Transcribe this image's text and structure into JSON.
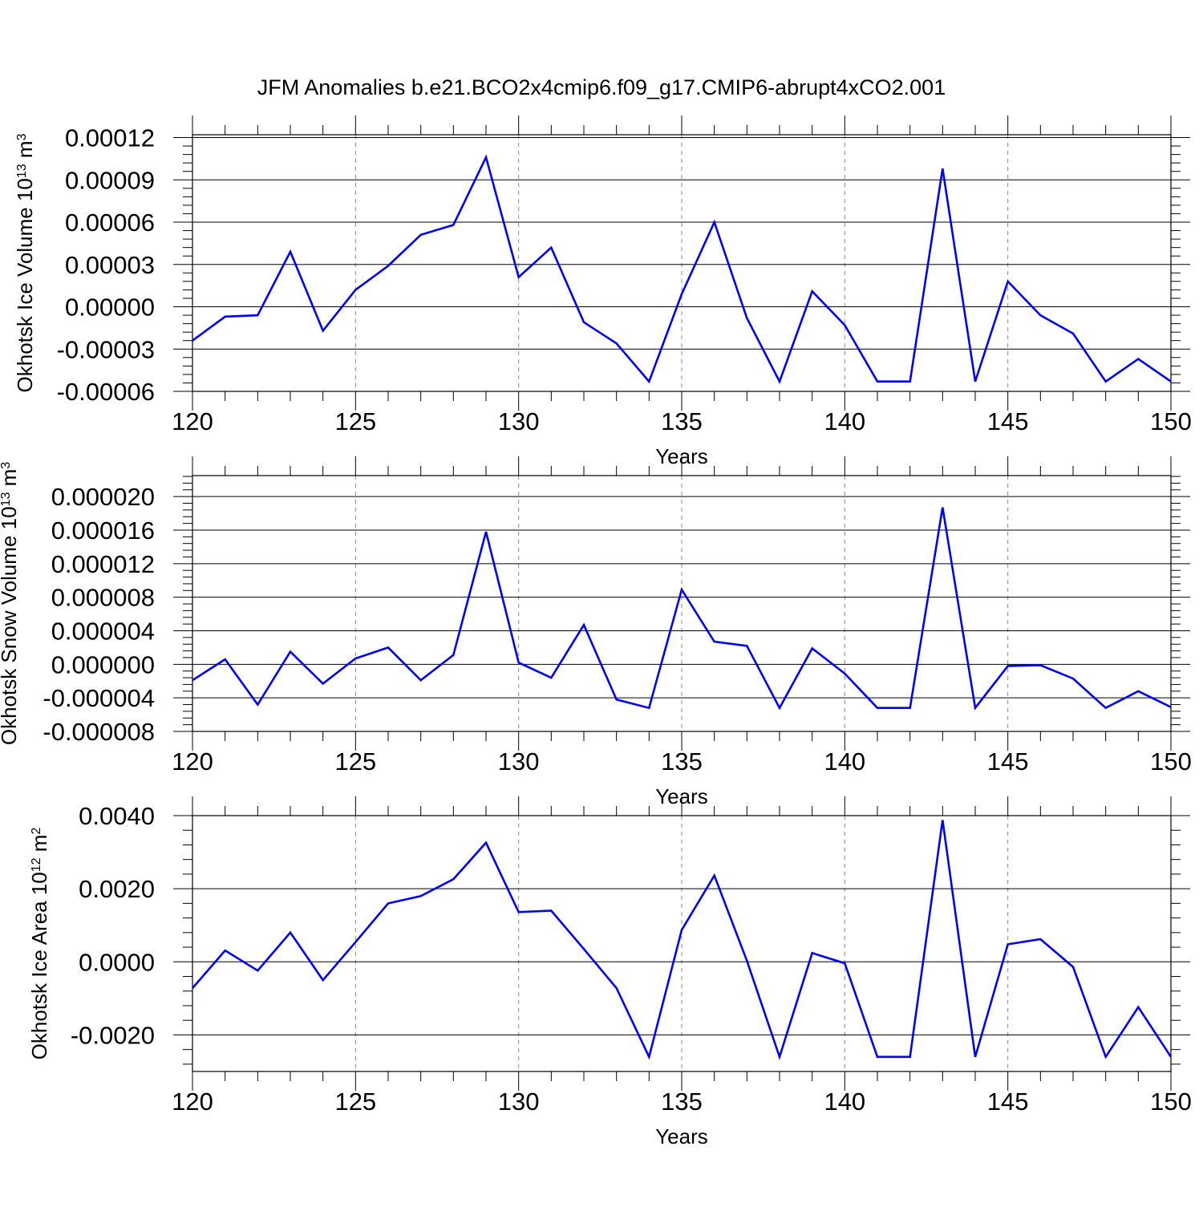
{
  "title": "JFM Anomalies b.e21.BCO2x4cmip6.f09_g17.CMIP6-abrupt4xCO2.001",
  "colors": {
    "line": "#0000ff",
    "axis": "#000000",
    "grid": "#888888"
  },
  "chart_data": [
    {
      "type": "line",
      "ylabel": "Okhotsk Ice Volume 10",
      "ylabel_exp": "13",
      "ylabel_unit": " m",
      "ylabel_unit_exp": "3",
      "xlabel": "Years",
      "xlim": [
        120,
        150
      ],
      "ylim": [
        -6e-05,
        0.000122
      ],
      "grid": "vertical dashed at major x ticks",
      "x_ticks": [
        {
          "value": 120,
          "label": "120"
        },
        {
          "value": 125,
          "label": "125"
        },
        {
          "value": 130,
          "label": "130"
        },
        {
          "value": 135,
          "label": "135"
        },
        {
          "value": 140,
          "label": "140"
        },
        {
          "value": 145,
          "label": "145"
        },
        {
          "value": 150,
          "label": "150"
        }
      ],
      "y_ticks": [
        {
          "value": 0.00012,
          "label": "0.00012"
        },
        {
          "value": 9e-05,
          "label": "0.00009"
        },
        {
          "value": 6e-05,
          "label": "0.00006"
        },
        {
          "value": 3e-05,
          "label": "0.00003"
        },
        {
          "value": 0.0,
          "label": "0.00000"
        },
        {
          "value": -3e-05,
          "label": "-0.00003"
        },
        {
          "value": -6e-05,
          "label": "-0.00006"
        }
      ],
      "series": [
        {
          "x": [
            120,
            121,
            122,
            123,
            124,
            125,
            126,
            127,
            128,
            129,
            130,
            131,
            132,
            133,
            134,
            135,
            136,
            137,
            138,
            139,
            140,
            141,
            142,
            143,
            144,
            145,
            146,
            147,
            148,
            149,
            150
          ],
          "values": [
            -2.4e-05,
            -7e-06,
            -6e-06,
            3.9e-05,
            -1.7e-05,
            1.2e-05,
            2.9e-05,
            5.1e-05,
            5.8e-05,
            0.000106,
            2.1e-05,
            4.2e-05,
            -1.1e-05,
            -2.6e-05,
            -5.3e-05,
            9e-06,
            6e-05,
            -8e-06,
            -5.3e-05,
            1.1e-05,
            -1.3e-05,
            -5.3e-05,
            -5.3e-05,
            9.8e-05,
            -5.3e-05,
            1.8e-05,
            -6e-06,
            -1.9e-05,
            -5.3e-05,
            -3.7e-05,
            -5.3e-05
          ]
        }
      ]
    },
    {
      "type": "line",
      "ylabel": "Okhotsk Snow Volume 10",
      "ylabel_exp": "13",
      "ylabel_unit": " m",
      "ylabel_unit_exp": "3",
      "xlabel": "Years",
      "xlim": [
        120,
        150
      ],
      "ylim": [
        -8e-06,
        2.25e-05
      ],
      "grid": "vertical dashed at major x ticks",
      "x_ticks": [
        {
          "value": 120,
          "label": "120"
        },
        {
          "value": 125,
          "label": "125"
        },
        {
          "value": 130,
          "label": "130"
        },
        {
          "value": 135,
          "label": "135"
        },
        {
          "value": 140,
          "label": "140"
        },
        {
          "value": 145,
          "label": "145"
        },
        {
          "value": 150,
          "label": "150"
        }
      ],
      "y_ticks": [
        {
          "value": 2e-05,
          "label": "0.000020"
        },
        {
          "value": 1.6e-05,
          "label": "0.000016"
        },
        {
          "value": 1.2e-05,
          "label": "0.000012"
        },
        {
          "value": 8e-06,
          "label": "0.000008"
        },
        {
          "value": 4e-06,
          "label": "0.000004"
        },
        {
          "value": 0.0,
          "label": "0.000000"
        },
        {
          "value": -4e-06,
          "label": "-0.000004"
        },
        {
          "value": -8e-06,
          "label": "-0.000008"
        }
      ],
      "series": [
        {
          "x": [
            120,
            121,
            122,
            123,
            124,
            125,
            126,
            127,
            128,
            129,
            130,
            131,
            132,
            133,
            134,
            135,
            136,
            137,
            138,
            139,
            140,
            141,
            142,
            143,
            144,
            145,
            146,
            147,
            148,
            149,
            150
          ],
          "values": [
            -1.9e-06,
            6e-07,
            -4.8e-06,
            1.5e-06,
            -2.3e-06,
            7e-07,
            2e-06,
            -1.9e-06,
            1.1e-06,
            1.58e-05,
            2e-07,
            -1.6e-06,
            4.7e-06,
            -4.2e-06,
            -5.2e-06,
            8.9e-06,
            2.7e-06,
            2.2e-06,
            -5.2e-06,
            1.9e-06,
            -1.1e-06,
            -5.2e-06,
            -5.2e-06,
            1.87e-05,
            -5.2e-06,
            -2e-07,
            -1e-07,
            -1.7e-06,
            -5.2e-06,
            -3.2e-06,
            -5.1e-06
          ]
        }
      ]
    },
    {
      "type": "line",
      "ylabel": "Okhotsk Ice Area 10",
      "ylabel_exp": "12",
      "ylabel_unit": " m",
      "ylabel_unit_exp": "2",
      "xlabel": "Years",
      "xlim": [
        120,
        150
      ],
      "ylim": [
        -0.003,
        0.004
      ],
      "grid": "vertical dashed at major x ticks",
      "x_ticks": [
        {
          "value": 120,
          "label": "120"
        },
        {
          "value": 125,
          "label": "125"
        },
        {
          "value": 130,
          "label": "130"
        },
        {
          "value": 135,
          "label": "135"
        },
        {
          "value": 140,
          "label": "140"
        },
        {
          "value": 145,
          "label": "145"
        },
        {
          "value": 150,
          "label": "150"
        }
      ],
      "y_ticks": [
        {
          "value": 0.004,
          "label": "0.0040"
        },
        {
          "value": 0.002,
          "label": "0.0020"
        },
        {
          "value": 0.0,
          "label": "0.0000"
        },
        {
          "value": -0.002,
          "label": "-0.0020"
        }
      ],
      "series": [
        {
          "x": [
            120,
            121,
            122,
            123,
            124,
            125,
            126,
            127,
            128,
            129,
            130,
            131,
            132,
            133,
            134,
            135,
            136,
            137,
            138,
            139,
            140,
            141,
            142,
            143,
            144,
            145,
            146,
            147,
            148,
            149,
            150
          ],
          "values": [
            -0.00072,
            0.00031,
            -0.00024,
            0.0008,
            -0.0005,
            0.00054,
            0.0016,
            0.0018,
            0.00226,
            0.00326,
            0.00136,
            0.0014,
            0.00035,
            -0.00072,
            -0.0026,
            0.00087,
            0.00236,
            3e-05,
            -0.0026,
            0.00024,
            -4e-05,
            -0.0026,
            -0.0026,
            0.00388,
            -0.0026,
            0.00048,
            0.00062,
            -0.00014,
            -0.0026,
            -0.00124,
            -0.0026
          ]
        }
      ]
    }
  ]
}
